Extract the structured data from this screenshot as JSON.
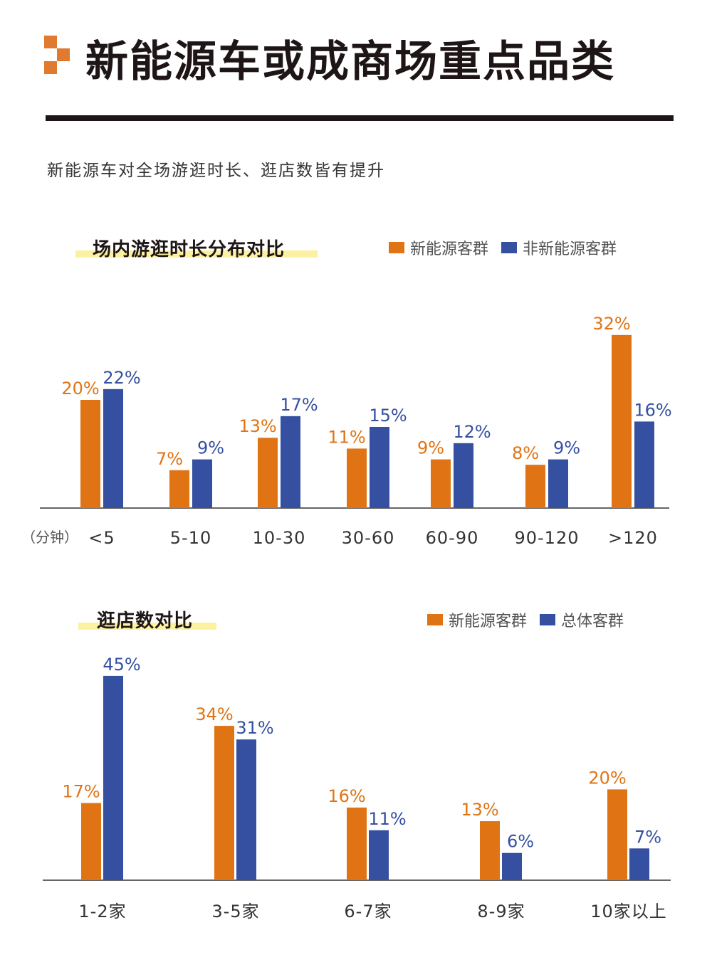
{
  "header": {
    "title": "新能源车或成商场重点品类",
    "subtitle": "新能源车对全场游逛时长、逛店数皆有提升"
  },
  "colors": {
    "accent": "#e07a2f",
    "orange": "#e07414",
    "blue": "#3550a0"
  },
  "chart_data": [
    {
      "type": "bar",
      "title": "场内游逛时长分布对比",
      "unit_label": "（分钟）",
      "categories": [
        "<5",
        "5-10",
        "10-30",
        "30-60",
        "60-90",
        "90-120",
        ">120"
      ],
      "series": [
        {
          "name": "新能源客群",
          "values": [
            20,
            7,
            13,
            11,
            9,
            8,
            32
          ]
        },
        {
          "name": "非新能源客群",
          "values": [
            22,
            9,
            17,
            15,
            12,
            9,
            16
          ]
        }
      ],
      "value_suffix": "%",
      "legend": "top-right",
      "grid": false
    },
    {
      "type": "bar",
      "title": "逛店数对比",
      "categories": [
        "1-2家",
        "3-5家",
        "6-7家",
        "8-9家",
        "10家以上"
      ],
      "series": [
        {
          "name": "新能源客群",
          "values": [
            17,
            34,
            16,
            13,
            20
          ]
        },
        {
          "name": "总体客群",
          "values": [
            45,
            31,
            11,
            6,
            7
          ]
        }
      ],
      "value_suffix": "%",
      "legend": "top-right",
      "grid": false
    }
  ]
}
